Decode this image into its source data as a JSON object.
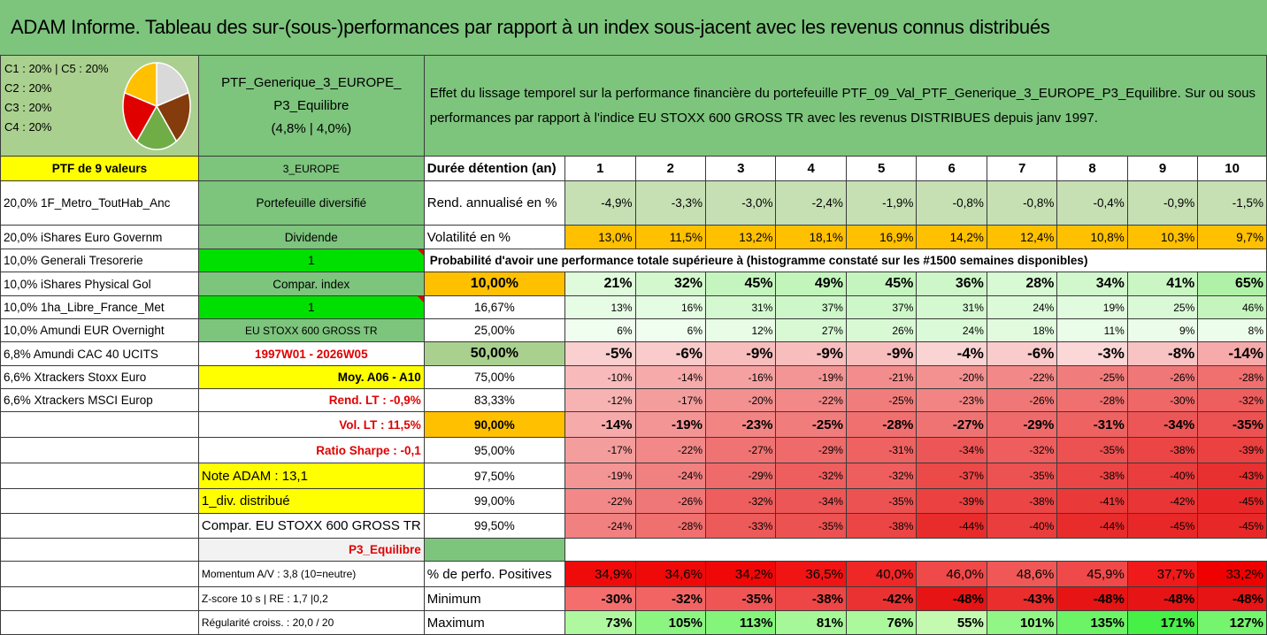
{
  "title": "ADAM Informe. Tableau des sur-(sous-)performances par rapport à un index sous-jacent avec les revenus connus distribués",
  "legend": [
    "C1 : 20% | C5 : 20%",
    "C2 : 20%",
    "C3 : 20%",
    "C4 : 20%"
  ],
  "pie": {
    "values": [
      20,
      20,
      20,
      20,
      20
    ],
    "colors": [
      "#d9d9d9",
      "#843c0c",
      "#70ad47",
      "#e00000",
      "#ffc000"
    ]
  },
  "portfolio": {
    "name_line1": "PTF_Generique_3_EUROPE_",
    "name_line2": "P3_Equilibre",
    "name_line3": "(4,8% | 4,0%)"
  },
  "description": "Effet du lissage temporel sur la performance financière du portefeuille PTF_09_Val_PTF_Generique_3_EUROPE_P3_Equilibre. Sur ou sous performances par rapport à l'indice EU STOXX 600 GROSS TR avec les revenus DISTRIBUES depuis janv 1997.",
  "holdings_header": "PTF de 9 valeurs",
  "holdings": [
    "20,0% 1F_Metro_ToutHab_Anc",
    "20,0% iShares Euro Governm",
    "10,0% Generali Tresorerie",
    "10,0% iShares Physical Gol",
    "10,0% 1ha_Libre_France_Met",
    "10,0% Amundi EUR Overnight",
    "6,8% Amundi CAC 40 UCITS",
    "6,6% Xtrackers Stoxx Euro",
    "6,6% Xtrackers MSCI Europ"
  ],
  "side": {
    "zone": "3_EUROPE",
    "diversified": "Portefeuille diversifié",
    "dividende": "Dividende",
    "div_value": "1",
    "compar_index": "Compar. index",
    "compar_value": "1",
    "index_name": "EU STOXX 600 GROSS TR",
    "period": "1997W01 - 2026W05",
    "moy": "Moy. A06 - A10",
    "rend_lt": "Rend. LT : -0,9%",
    "vol_lt": "Vol. LT : 11,5%",
    "sharpe": "Ratio Sharpe : -0,1",
    "note": "Note ADAM : 13,1",
    "div_distrib": "1_div. distribué",
    "compar_full": "Compar. EU STOXX 600 GROSS TR",
    "profile": "P3_Equilibre",
    "momentum": "Momentum A/V : 3,8 (10=neutre)",
    "zscore": "Z-score 10 s | RE : 1,7 |0,2",
    "regularite": "Régularité croiss. : 20,0 / 20"
  },
  "table": {
    "duration_label": "Durée détention (an)",
    "years": [
      "1",
      "2",
      "3",
      "4",
      "5",
      "6",
      "7",
      "8",
      "9",
      "10"
    ],
    "rend_label": "Rend. annualisé en %",
    "rend": [
      "-4,9%",
      "-3,3%",
      "-3,0%",
      "-2,4%",
      "-1,9%",
      "-0,8%",
      "-0,8%",
      "-0,4%",
      "-0,9%",
      "-1,5%"
    ],
    "vol_label": "Volatilité en %",
    "vol": [
      "13,0%",
      "11,5%",
      "13,2%",
      "18,1%",
      "16,9%",
      "14,2%",
      "12,4%",
      "10,8%",
      "10,3%",
      "9,7%"
    ],
    "prob_title": "Probabilité d'avoir une performance totale supérieure à (histogramme constaté sur les #1500 semaines disponibles)",
    "quantiles": [
      {
        "label": "10,00%",
        "values": [
          "21%",
          "32%",
          "45%",
          "49%",
          "45%",
          "36%",
          "28%",
          "34%",
          "41%",
          "65%"
        ]
      },
      {
        "label": "16,67%",
        "values": [
          "13%",
          "16%",
          "31%",
          "37%",
          "37%",
          "31%",
          "24%",
          "19%",
          "25%",
          "46%"
        ]
      },
      {
        "label": "25,00%",
        "values": [
          "6%",
          "6%",
          "12%",
          "27%",
          "26%",
          "24%",
          "18%",
          "11%",
          "9%",
          "8%"
        ]
      },
      {
        "label": "50,00%",
        "values": [
          "-5%",
          "-6%",
          "-9%",
          "-9%",
          "-9%",
          "-4%",
          "-6%",
          "-3%",
          "-8%",
          "-14%"
        ]
      },
      {
        "label": "75,00%",
        "values": [
          "-10%",
          "-14%",
          "-16%",
          "-19%",
          "-21%",
          "-20%",
          "-22%",
          "-25%",
          "-26%",
          "-28%"
        ]
      },
      {
        "label": "83,33%",
        "values": [
          "-12%",
          "-17%",
          "-20%",
          "-22%",
          "-25%",
          "-23%",
          "-26%",
          "-28%",
          "-30%",
          "-32%"
        ]
      },
      {
        "label": "90,00%",
        "values": [
          "-14%",
          "-19%",
          "-23%",
          "-25%",
          "-28%",
          "-27%",
          "-29%",
          "-31%",
          "-34%",
          "-35%"
        ]
      },
      {
        "label": "95,00%",
        "values": [
          "-17%",
          "-22%",
          "-27%",
          "-29%",
          "-31%",
          "-34%",
          "-32%",
          "-35%",
          "-38%",
          "-39%"
        ]
      },
      {
        "label": "97,50%",
        "values": [
          "-19%",
          "-24%",
          "-29%",
          "-32%",
          "-32%",
          "-37%",
          "-35%",
          "-38%",
          "-40%",
          "-43%"
        ]
      },
      {
        "label": "99,00%",
        "values": [
          "-22%",
          "-26%",
          "-32%",
          "-34%",
          "-35%",
          "-39%",
          "-38%",
          "-41%",
          "-42%",
          "-45%"
        ]
      },
      {
        "label": "99,50%",
        "values": [
          "-24%",
          "-28%",
          "-33%",
          "-35%",
          "-38%",
          "-44%",
          "-40%",
          "-44%",
          "-45%",
          "-45%"
        ]
      }
    ],
    "pos_label": "% de perfo. Positives",
    "pos": [
      "34,9%",
      "34,6%",
      "34,2%",
      "36,5%",
      "40,0%",
      "46,0%",
      "48,6%",
      "45,9%",
      "37,7%",
      "33,2%"
    ],
    "min_label": "Minimum",
    "min": [
      "-30%",
      "-32%",
      "-35%",
      "-38%",
      "-42%",
      "-48%",
      "-43%",
      "-48%",
      "-48%",
      "-48%"
    ],
    "max_label": "Maximum",
    "max": [
      "73%",
      "105%",
      "113%",
      "81%",
      "76%",
      "55%",
      "101%",
      "135%",
      "171%",
      "127%"
    ]
  }
}
